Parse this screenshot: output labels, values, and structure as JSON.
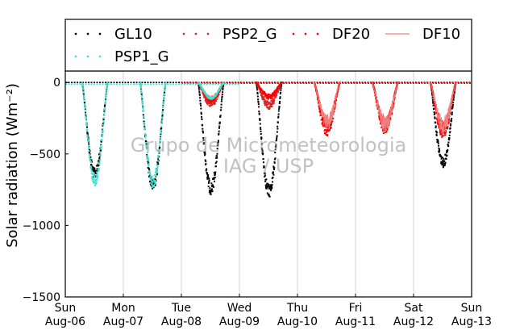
{
  "chart_data": {
    "type": "scatter",
    "ylabel": "Solar radiation (Wm⁻²)",
    "ylim": [
      -1500,
      80
    ],
    "yticks": [
      0,
      -500,
      -1000,
      -1500
    ],
    "ytick_labels": [
      "0",
      "−500",
      "−1000",
      "−1500"
    ],
    "xlim": [
      0,
      7
    ],
    "xtick_day_labels": [
      "Sun",
      "Mon",
      "Tue",
      "Wed",
      "Thu",
      "Fri",
      "Sat",
      "Sun"
    ],
    "xtick_date_labels": [
      "Aug-06",
      "Aug-07",
      "Aug-08",
      "Aug-09",
      "Aug-10",
      "Aug-11",
      "Aug-12",
      "Aug-13"
    ],
    "grid": "vertical",
    "legend_placement": "top",
    "watermark_lines": [
      "Grupo de Micrometeorologia",
      "IAG / USP"
    ],
    "series": [
      {
        "name": "GL10",
        "color": "#000000",
        "marker": "dot",
        "days": [
          {
            "day": 0,
            "peak": -640
          },
          {
            "day": 1,
            "peak": -720
          },
          {
            "day": 2,
            "peak": -740
          },
          {
            "day": 3,
            "peak": -760
          },
          {
            "day": 6,
            "peak": -560
          }
        ]
      },
      {
        "name": "PSP2_G",
        "color": "#d62728",
        "marker": "dot",
        "days": [
          {
            "day": 2,
            "peak": -150
          },
          {
            "day": 3,
            "peak": -160
          },
          {
            "day": 4,
            "peak": -300
          },
          {
            "day": 5,
            "peak": -300
          },
          {
            "day": 6,
            "peak": -340
          }
        ]
      },
      {
        "name": "DF20",
        "color": "#ff0000",
        "marker": "dot",
        "days": [
          {
            "day": 2,
            "peak": -120
          },
          {
            "day": 3,
            "peak": -100
          },
          {
            "day": 4,
            "peak": -320
          },
          {
            "day": 5,
            "peak": -310
          },
          {
            "day": 6,
            "peak": -330
          }
        ]
      },
      {
        "name": "DF10",
        "color": "#f08080",
        "marker": "line",
        "days": [
          {
            "day": 4,
            "peak": -280
          },
          {
            "day": 5,
            "peak": -290
          },
          {
            "day": 6,
            "peak": -300
          }
        ]
      },
      {
        "name": "PSP1_G",
        "color": "#40e0d0",
        "marker": "dot",
        "days": [
          {
            "day": 0,
            "peak": -680
          },
          {
            "day": 1,
            "peak": -700
          },
          {
            "day": 2,
            "peak": -110
          }
        ]
      }
    ]
  }
}
